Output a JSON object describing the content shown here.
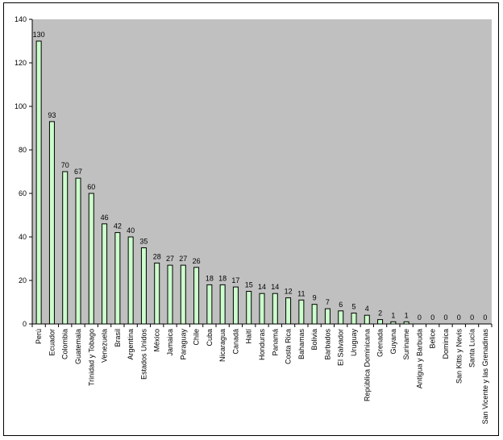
{
  "chart_data": {
    "type": "bar",
    "title": "",
    "xlabel": "",
    "ylabel": "",
    "ylim": [
      0,
      140
    ],
    "yticks": [
      0,
      20,
      40,
      60,
      80,
      100,
      120,
      140
    ],
    "grid": false,
    "legend": "none",
    "colors": {
      "plot_background": "#c0c0c0",
      "bar_fill": "#ccffcc",
      "bar_stroke": "#000000"
    },
    "categories": [
      "Perú",
      "Ecuador",
      "Colombia",
      "Guatemala",
      "Trinidad y Tobago",
      "Venezuela",
      "Brasil",
      "Argentina",
      "Estados Unidos",
      "México",
      "Jamaica",
      "Paraguay",
      "Chile",
      "Cuba",
      "Nicaragua",
      "Canadá",
      "Haití",
      "Honduras",
      "Panamá",
      "Costa Rica",
      "Bahamas",
      "Bolivia",
      "Barbados",
      "El Salvador",
      "Uruguay",
      "República Dominicana",
      "Grenada",
      "Guyana",
      "Suriname",
      "Antigua y Barbuda",
      "Belice",
      "Dominica",
      "San Kitts y Nevis",
      "Santa Lucía",
      "San Vicente y las Grenadinas"
    ],
    "values": [
      130,
      93,
      70,
      67,
      60,
      46,
      42,
      40,
      35,
      28,
      27,
      27,
      26,
      18,
      18,
      17,
      15,
      14,
      14,
      12,
      11,
      9,
      7,
      6,
      5,
      4,
      2,
      1,
      1,
      0,
      0,
      0,
      0,
      0,
      0
    ]
  }
}
